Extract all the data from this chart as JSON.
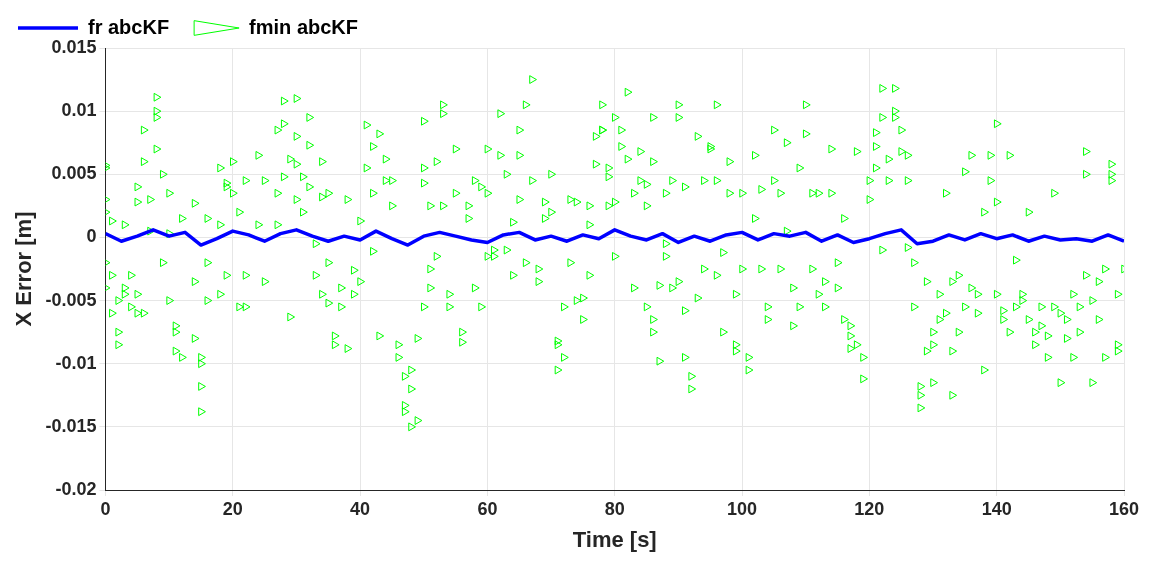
{
  "chart_data": {
    "type": "scatter",
    "xlabel": "Time [s]",
    "ylabel": "X Error [m]",
    "xlim": [
      0,
      160
    ],
    "xticks": [
      0,
      20,
      40,
      60,
      80,
      100,
      120,
      140,
      160
    ],
    "ylim": [
      -0.02,
      0.015
    ],
    "yticks": [
      -0.02,
      -0.015,
      -0.01,
      -0.005,
      0,
      0.005,
      0.01,
      0.015
    ],
    "grid": true,
    "legend": "top left",
    "series": [
      {
        "name": "fr abcKF",
        "type": "line",
        "color": "#0000ff",
        "marker": "none",
        "line_style": "solid",
        "x": [
          0,
          2.5,
          5,
          7.5,
          10,
          12.5,
          15,
          17.5,
          20,
          22.5,
          25,
          27.5,
          30,
          32.5,
          35,
          37.5,
          40,
          42.5,
          45,
          47.5,
          50,
          52.5,
          55,
          57.5,
          60,
          62.5,
          65,
          67.5,
          70,
          72.5,
          75,
          77.5,
          80,
          82.5,
          85,
          87.5,
          90,
          92.5,
          95,
          97.5,
          100,
          102.5,
          105,
          107.5,
          110,
          112.5,
          115,
          117.5,
          120,
          122.5,
          125,
          127.5,
          130,
          132.5,
          135,
          137.5,
          140,
          142.5,
          145,
          147.5,
          150,
          152.5,
          155,
          157.5,
          160
        ],
        "values": [
          0.0003,
          -0.0003,
          0.0001,
          0.0006,
          0.0001,
          0.0004,
          -0.0006,
          -0.0001,
          0.0005,
          0.0002,
          -0.0003,
          0.0003,
          0.0006,
          0.0001,
          -0.0003,
          0.0001,
          -0.0002,
          0.0005,
          -0.0001,
          -0.0006,
          0.0001,
          0.0004,
          0.0001,
          -0.0002,
          -0.0004,
          0.0002,
          0.0004,
          -0.0002,
          0.0001,
          -0.0003,
          0.0002,
          -0.0001,
          0.0006,
          0.0001,
          -0.0002,
          0.0003,
          -0.0004,
          0.0001,
          -0.0003,
          0.0002,
          0.0004,
          -0.0002,
          0.0003,
          0.0001,
          0.0004,
          -0.0003,
          0.0002,
          -0.0004,
          -0.0001,
          0.0003,
          0.0006,
          -0.0005,
          -0.0003,
          0.0002,
          -0.0002,
          0.0003,
          -0.0001,
          0.0002,
          -0.0003,
          0.0001,
          -0.0002,
          -0.0001,
          -0.0003,
          0.0002,
          -0.0003
        ]
      },
      {
        "name": "fmin abcKF",
        "color": "#00ff00",
        "marker": "triangle",
        "x": [
          0,
          0,
          0,
          0,
          0,
          0,
          1,
          1,
          1,
          2,
          2,
          2,
          3,
          3,
          3,
          4,
          4,
          5,
          5,
          5,
          5,
          6,
          6,
          6,
          7,
          7,
          8,
          8,
          8,
          8,
          9,
          9,
          10,
          10,
          10,
          11,
          11,
          11,
          12,
          12,
          14,
          14,
          14,
          15,
          15,
          15,
          15,
          16,
          16,
          16,
          18,
          18,
          18,
          19,
          19,
          19,
          20,
          20,
          21,
          21,
          22,
          22,
          22,
          24,
          24,
          25,
          25,
          27,
          27,
          27,
          28,
          28,
          28,
          29,
          29,
          30,
          30,
          30,
          30,
          31,
          31,
          32,
          32,
          32,
          33,
          33,
          34,
          34,
          34,
          35,
          35,
          35,
          36,
          36,
          37,
          37,
          38,
          38,
          39,
          39,
          40,
          40,
          41,
          41,
          42,
          42,
          42,
          43,
          43,
          44,
          44,
          45,
          45,
          46,
          46,
          47,
          47,
          47,
          48,
          48,
          48,
          49,
          49,
          50,
          50,
          50,
          50,
          51,
          51,
          51,
          52,
          52,
          53,
          53,
          53,
          54,
          54,
          55,
          55,
          56,
          56,
          57,
          57,
          58,
          58,
          59,
          59,
          60,
          60,
          60,
          61,
          61,
          62,
          62,
          63,
          63,
          64,
          64,
          65,
          65,
          65,
          66,
          66,
          67,
          67,
          68,
          68,
          69,
          69,
          70,
          70,
          71,
          71,
          71,
          72,
          72,
          73,
          73,
          74,
          74,
          75,
          75,
          76,
          76,
          76,
          77,
          77,
          78,
          78,
          78,
          79,
          79,
          79,
          80,
          80,
          80,
          81,
          81,
          82,
          82,
          83,
          83,
          84,
          84,
          85,
          85,
          85,
          86,
          86,
          86,
          86,
          87,
          87,
          88,
          88,
          88,
          89,
          89,
          90,
          90,
          90,
          91,
          91,
          91,
          92,
          92,
          93,
          93,
          94,
          94,
          95,
          95,
          96,
          96,
          96,
          97,
          97,
          98,
          98,
          99,
          99,
          99,
          100,
          100,
          101,
          101,
          102,
          102,
          103,
          103,
          104,
          104,
          105,
          105,
          106,
          106,
          107,
          107,
          108,
          108,
          109,
          109,
          110,
          110,
          111,
          111,
          112,
          112,
          113,
          113,
          114,
          114,
          115,
          115,
          116,
          116,
          117,
          117,
          117,
          118,
          118,
          119,
          119,
          120,
          120,
          121,
          121,
          121,
          122,
          122,
          122,
          123,
          123,
          124,
          124,
          124,
          125,
          125,
          126,
          126,
          126,
          127,
          127,
          128,
          128,
          128,
          129,
          129,
          130,
          130,
          130,
          131,
          131,
          132,
          132,
          133,
          133,
          133,
          134,
          134,
          135,
          135,
          136,
          136,
          137,
          137,
          138,
          138,
          139,
          139,
          140,
          140,
          140,
          141,
          141,
          142,
          142,
          143,
          143,
          144,
          144,
          145,
          145,
          146,
          146,
          147,
          147,
          148,
          148,
          149,
          149,
          150,
          150,
          151,
          151,
          152,
          152,
          153,
          153,
          154,
          154,
          154,
          155,
          155,
          156,
          156,
          157,
          157,
          158,
          158,
          158,
          159,
          159,
          159,
          160
        ],
        "values": [
          0.0057,
          0.0055,
          0.003,
          0.002,
          -0.002,
          -0.004,
          0.0013,
          -0.003,
          -0.006,
          -0.005,
          -0.0075,
          -0.0085,
          -0.004,
          -0.0045,
          0.001,
          -0.003,
          -0.0055,
          0.004,
          0.0028,
          -0.006,
          -0.0045,
          0.0085,
          0.006,
          -0.006,
          0.0005,
          0.003,
          0.0111,
          0.01,
          0.0095,
          0.007,
          0.005,
          -0.002,
          0.0003,
          -0.005,
          0.0035,
          -0.007,
          -0.0075,
          -0.009,
          0.0015,
          -0.0095,
          -0.0035,
          0.0027,
          -0.008,
          -0.0095,
          -0.0118,
          -0.0138,
          -0.01,
          0.0015,
          -0.002,
          -0.005,
          0.0055,
          0.001,
          -0.0045,
          0.0043,
          0.004,
          -0.003,
          0.006,
          0.0035,
          0.002,
          -0.0055,
          -0.003,
          0.0045,
          -0.0055,
          0.0065,
          0.001,
          0.0045,
          -0.0035,
          0.0035,
          0.0085,
          0.001,
          0.0108,
          0.009,
          0.0048,
          0.0062,
          -0.0063,
          0.011,
          0.008,
          0.0058,
          0.003,
          0.0048,
          0.002,
          0.0073,
          0.0095,
          0.004,
          -0.0005,
          -0.003,
          0.006,
          0.0032,
          -0.0045,
          0.0035,
          -0.002,
          -0.0052,
          -0.0078,
          -0.0085,
          -0.0055,
          -0.004,
          0.003,
          -0.0088,
          -0.0045,
          -0.0026,
          0.0013,
          -0.0035,
          0.0055,
          0.0089,
          0.0072,
          0.0035,
          -0.0011,
          0.0082,
          -0.0078,
          0.0045,
          0.0062,
          0.0045,
          0.0025,
          -0.0085,
          -0.0095,
          -0.011,
          -0.0133,
          -0.0138,
          -0.012,
          -0.0105,
          -0.015,
          -0.0145,
          -0.008,
          0.0092,
          0.0055,
          0.0043,
          -0.0055,
          0.0025,
          -0.004,
          -0.0025,
          0.006,
          -0.0015,
          0.0025,
          0.0105,
          0.0098,
          -0.0055,
          -0.0045,
          0.007,
          0.0035,
          -0.0075,
          -0.0083,
          0.0025,
          0.0015,
          0.0045,
          -0.004,
          -0.0055,
          0.004,
          -0.0015,
          0.007,
          0.0035,
          -0.0015,
          -0.001,
          0.0098,
          0.0065,
          0.005,
          -0.001,
          0.0012,
          -0.003,
          0.0065,
          0.0085,
          0.003,
          0.0105,
          -0.002,
          0.0125,
          0.0045,
          -0.0025,
          -0.0035,
          0.0028,
          0.0015,
          0.005,
          0.002,
          -0.0085,
          -0.0082,
          -0.0105,
          -0.0095,
          -0.0055,
          0.003,
          -0.002,
          -0.005,
          0.0028,
          -0.0048,
          -0.0065,
          -0.003,
          0.0025,
          0.001,
          0.008,
          0.0058,
          0.0085,
          0.0105,
          0.0085,
          0.0055,
          0.0048,
          0.0025,
          0.0095,
          0.0028,
          -0.0015,
          0.0072,
          0.0085,
          0.0062,
          0.0115,
          0.0035,
          -0.004,
          0.0045,
          0.0068,
          0.0042,
          0.0025,
          -0.0055,
          0.0095,
          0.006,
          -0.0065,
          -0.0075,
          -0.0098,
          -0.0038,
          -0.0005,
          0.0035,
          -0.0015,
          -0.004,
          0.0045,
          0.0105,
          0.0095,
          -0.0035,
          -0.0095,
          -0.0058,
          0.004,
          -0.012,
          -0.011,
          -0.0048,
          0.008,
          -0.0025,
          0.0045,
          0.0072,
          0.007,
          0.0105,
          0.0045,
          -0.003,
          -0.0075,
          -0.0012,
          0.006,
          0.0035,
          -0.0085,
          -0.009,
          -0.0045,
          0.0035,
          -0.0025,
          -0.0105,
          -0.0095,
          0.0065,
          0.0015,
          0.0038,
          -0.0025,
          -0.0065,
          -0.0055,
          0.0085,
          0.0045,
          0.0035,
          -0.0025,
          0.0075,
          0.0005,
          -0.004,
          -0.007,
          0.0055,
          -0.0055,
          0.0105,
          0.0082,
          0.0035,
          -0.0025,
          -0.0045,
          0.0035,
          -0.0035,
          -0.0055,
          0.0035,
          0.007,
          -0.002,
          -0.004,
          -0.0065,
          0.0015,
          -0.0088,
          -0.007,
          -0.0078,
          -0.0085,
          0.0068,
          -0.0112,
          -0.0095,
          0.0045,
          0.003,
          0.0055,
          0.0083,
          0.0072,
          0.0118,
          0.0095,
          -0.001,
          0.0062,
          0.0045,
          0.0095,
          0.0118,
          0.01,
          0.0085,
          0.0068,
          0.0065,
          0.0045,
          -0.0008,
          -0.0055,
          -0.002,
          -0.0125,
          -0.0135,
          -0.0118,
          -0.0035,
          -0.009,
          -0.0085,
          -0.0075,
          -0.0115,
          -0.0045,
          -0.0065,
          -0.006,
          0.0035,
          -0.0035,
          -0.0125,
          -0.009,
          -0.003,
          -0.0075,
          -0.0055,
          0.0052,
          0.0065,
          -0.004,
          -0.0045,
          -0.006,
          0.002,
          -0.0105,
          0.0045,
          0.0065,
          0.009,
          0.0028,
          -0.0045,
          -0.0065,
          -0.0058,
          0.0065,
          -0.0075,
          -0.0055,
          -0.0018,
          -0.0045,
          -0.005,
          -0.0065,
          0.002,
          -0.0075,
          -0.0085,
          -0.0055,
          -0.007,
          -0.0078,
          -0.0095,
          0.0035,
          -0.0055,
          -0.0115,
          -0.006,
          -0.0065,
          -0.008,
          -0.0095,
          -0.0045,
          -0.0055,
          -0.0075,
          0.0068,
          0.005,
          -0.003,
          -0.005,
          -0.0115,
          -0.0035,
          -0.0065,
          -0.0095,
          -0.0025,
          0.0058,
          0.005,
          0.0045,
          -0.009,
          -0.0085,
          -0.0045,
          -0.0025
        ]
      }
    ]
  }
}
